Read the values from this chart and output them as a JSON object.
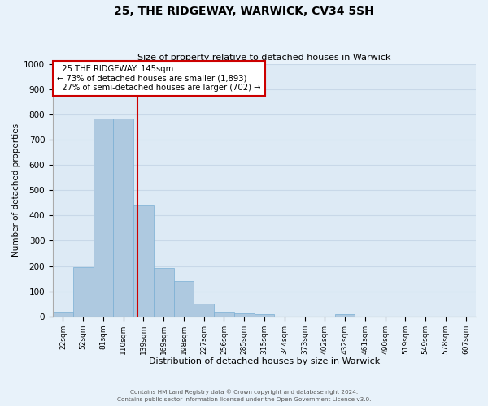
{
  "title": "25, THE RIDGEWAY, WARWICK, CV34 5SH",
  "subtitle": "Size of property relative to detached houses in Warwick",
  "xlabel": "Distribution of detached houses by size in Warwick",
  "ylabel": "Number of detached properties",
  "bar_labels": [
    "22sqm",
    "52sqm",
    "81sqm",
    "110sqm",
    "139sqm",
    "169sqm",
    "198sqm",
    "227sqm",
    "256sqm",
    "285sqm",
    "315sqm",
    "344sqm",
    "373sqm",
    "402sqm",
    "432sqm",
    "461sqm",
    "490sqm",
    "519sqm",
    "549sqm",
    "578sqm",
    "607sqm"
  ],
  "bar_values": [
    18,
    195,
    783,
    785,
    438,
    191,
    142,
    49,
    18,
    12,
    9,
    0,
    0,
    0,
    10,
    0,
    0,
    0,
    0,
    0,
    0
  ],
  "bar_color": "#aec9e0",
  "bar_edge_color": "#7aafd4",
  "ylim": [
    0,
    1000
  ],
  "yticks": [
    0,
    100,
    200,
    300,
    400,
    500,
    600,
    700,
    800,
    900,
    1000
  ],
  "marker_label": "25 THE RIDGEWAY: 145sqm",
  "pct_smaller": "73% of detached houses are smaller (1,893)",
  "pct_larger": "27% of semi-detached houses are larger (702)",
  "annotation_box_color": "#ffffff",
  "annotation_box_edge": "#cc0000",
  "vline_color": "#cc0000",
  "grid_color": "#c8d8e8",
  "bg_color": "#ddeaf5",
  "fig_color": "#e8f2fa",
  "footer_line1": "Contains HM Land Registry data © Crown copyright and database right 2024.",
  "footer_line2": "Contains public sector information licensed under the Open Government Licence v3.0."
}
